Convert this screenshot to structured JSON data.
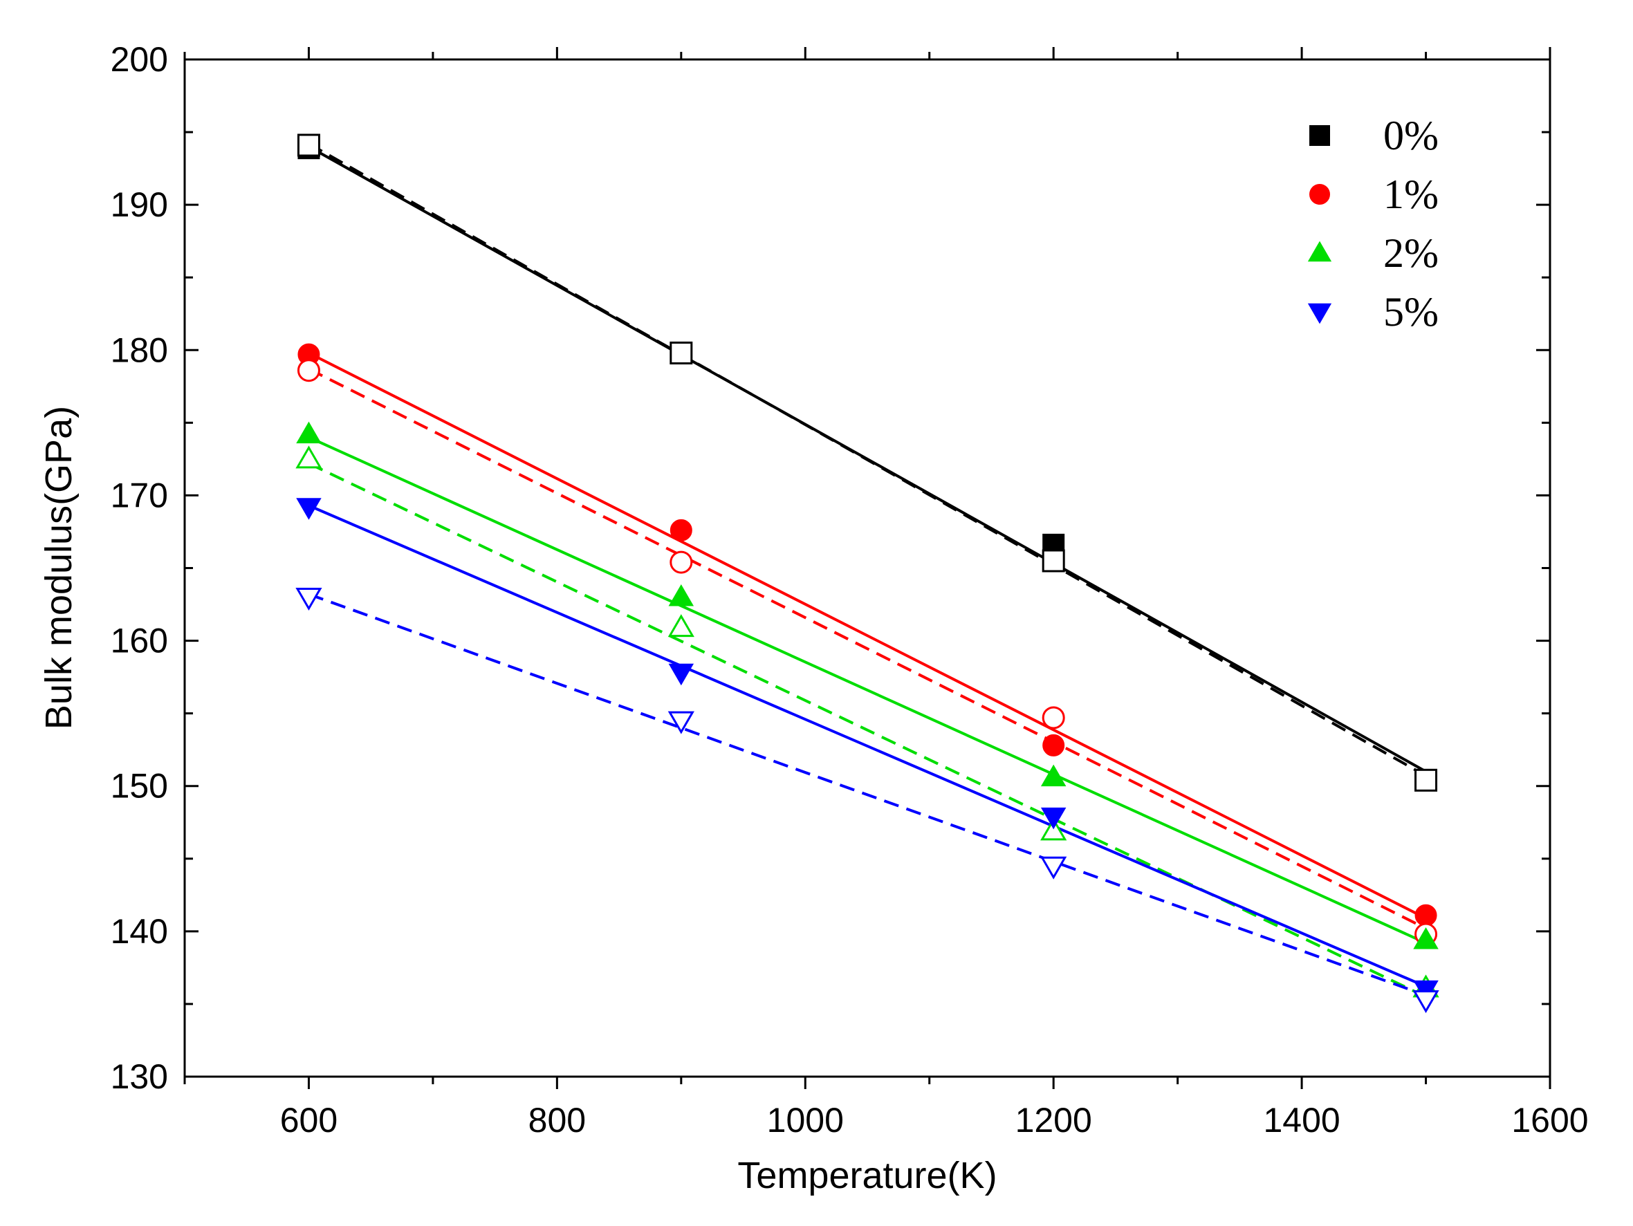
{
  "chart_data": {
    "type": "line",
    "title": "",
    "xlabel": "Temperature(K)",
    "ylabel": "Bulk modulus(GPa)",
    "xlim": [
      500,
      1600
    ],
    "ylim": [
      130,
      200
    ],
    "xticks": [
      600,
      800,
      1000,
      1200,
      1400,
      1600
    ],
    "yticks": [
      130,
      140,
      150,
      160,
      170,
      180,
      190,
      200
    ],
    "x_tick_labels": [
      "600",
      "800",
      "1000",
      "1200",
      "1400",
      "1600"
    ],
    "y_tick_labels": [
      "130",
      "140",
      "150",
      "160",
      "170",
      "180",
      "190",
      "200"
    ],
    "grid": false,
    "legend_position": "top-right",
    "x": [
      600,
      900,
      1200,
      1500
    ],
    "series": [
      {
        "name": "0%",
        "color": "#000000",
        "marker": "square",
        "filled_values": [
          193.9,
          179.8,
          166.6,
          150.4
        ],
        "filled_fit": [
          194.0,
          151.0
        ],
        "open_values": [
          194.1,
          179.8,
          165.5,
          150.4
        ],
        "open_fit": [
          194.2,
          150.7
        ]
      },
      {
        "name": "1%",
        "color": "#ff0000",
        "marker": "circle",
        "filled_values": [
          179.7,
          167.6,
          152.8,
          141.1
        ],
        "filled_fit": [
          179.8,
          140.9
        ],
        "open_values": [
          178.6,
          165.4,
          154.7,
          139.8
        ],
        "open_fit": [
          178.7,
          140.2
        ]
      },
      {
        "name": "2%",
        "color": "#00dd00",
        "marker": "triangle-up",
        "filled_values": [
          174.2,
          163.0,
          150.6,
          139.4
        ],
        "filled_fit": [
          174.0,
          139.2
        ],
        "open_values": [
          172.5,
          160.9,
          146.9,
          136.1
        ],
        "open_fit": [
          172.2,
          135.5
        ]
      },
      {
        "name": "5%",
        "color": "#0000ff",
        "marker": "triangle-down",
        "filled_values": [
          169.2,
          157.8,
          147.9,
          136.0
        ],
        "filled_fit": [
          169.3,
          136.2
        ],
        "open_values": [
          163.0,
          154.5,
          144.5,
          135.3
        ],
        "open_fit": [
          163.2,
          135.6
        ]
      }
    ]
  }
}
